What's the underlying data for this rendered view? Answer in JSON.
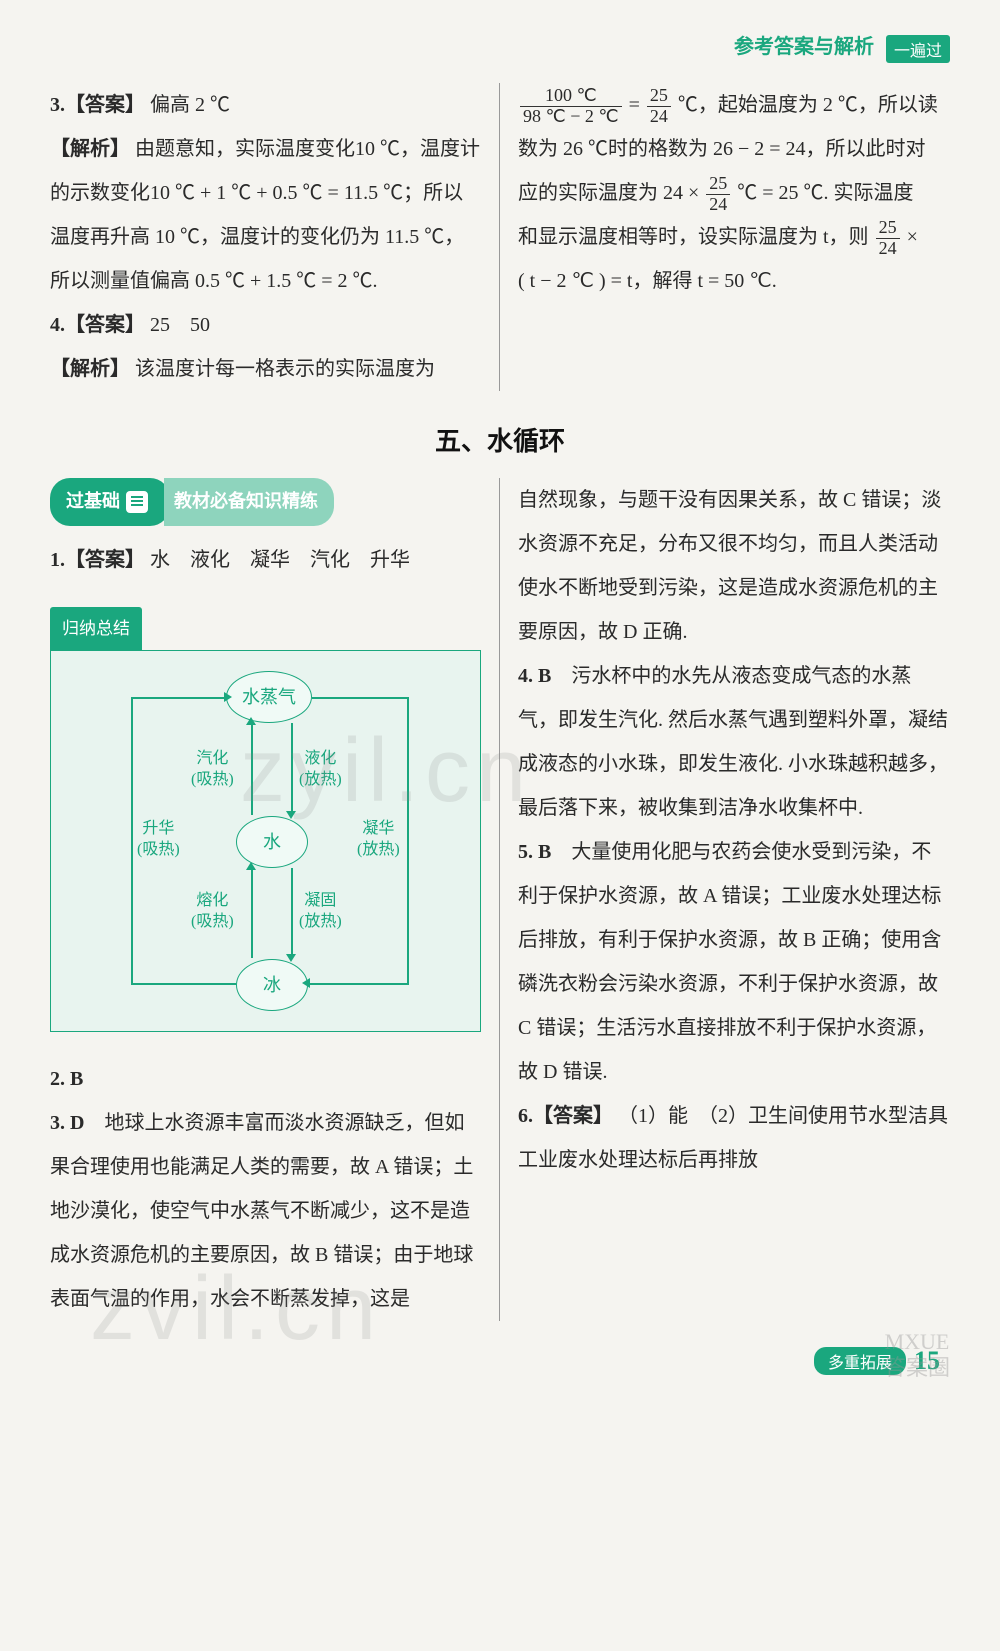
{
  "header": {
    "title": "参考答案与解析",
    "badge": "一遍过"
  },
  "section1": {
    "left": {
      "q3_label": "3.【答案】",
      "q3_ans": "偏高 2 ℃",
      "q3_ex_label": "【解析】",
      "q3_ex": "由题意知，实际温度变化10 ℃，温度计的示数变化10 ℃ + 1 ℃ + 0.5 ℃ = 11.5 ℃；所以温度再升高 10 ℃，温度计的变化仍为 11.5 ℃，所以测量值偏高 0.5 ℃ + 1.5 ℃ = 2 ℃.",
      "q4_label": "4.【答案】",
      "q4_ans": "25　50",
      "q4_ex_label": "【解析】",
      "q4_ex_pre": "该温度计每一格表示的实际温度为"
    },
    "right": {
      "frac_num": "100 ℃",
      "frac_den": "98 ℃ − 2 ℃",
      "eq1": " = ",
      "frac2_num": "25",
      "frac2_den": "24",
      "tail1": " ℃，起始温度为 2 ℃，所以读",
      "line2": "数为 26 ℃时的格数为 26 − 2 = 24，所以此时对",
      "line3_pre": "应的实际温度为 24 × ",
      "line3_post": " ℃ = 25 ℃. 实际温度",
      "line4_pre": "和显示温度相等时，设实际温度为 t，则",
      "line4_post": " × ",
      "line5": "( t − 2 ℃ ) = t，解得 t = 50 ℃."
    }
  },
  "section_title": "五、水循环",
  "basics": {
    "pill": "过基础",
    "subtitle": "教材必备知识精练"
  },
  "section2": {
    "left": {
      "q1_label": "1.【答案】",
      "q1_ans": "水　液化　凝华　汽化　升华",
      "summary_label": "归纳总结",
      "q2": "2. B",
      "q3_pre": "3. D",
      "q3_body": "　地球上水资源丰富而淡水资源缺乏，但如果合理使用也能满足人类的需要，故 A 错误；土地沙漠化，使空气中水蒸气不断减少，这不是造成水资源危机的主要原因，故 B 错误；由于地球表面气温的作用，水会不断蒸发掉，这是"
    },
    "right": {
      "p1": "自然现象，与题干没有因果关系，故 C 错误；淡水资源不充足，分布又很不均匀，而且人类活动使水不断地受到污染，这是造成水资源危机的主要原因，故 D 正确.",
      "q4_pre": "4. B",
      "q4_body": "　污水杯中的水先从液态变成气态的水蒸气，即发生汽化. 然后水蒸气遇到塑料外罩，凝结成液态的小水珠，即发生液化. 小水珠越积越多，最后落下来，被收集到洁净水收集杯中.",
      "q5_pre": "5. B",
      "q5_body": "　大量使用化肥与农药会使水受到污染，不利于保护水资源，故 A 错误；工业废水处理达标后排放，有利于保护水资源，故 B 正确；使用含磷洗衣粉会污染水资源，不利于保护水资源，故 C 错误；生活污水直接排放不利于保护水资源，故 D 错误.",
      "q6_label": "6.【答案】",
      "q6_ans": "（1）能　（2）卫生间使用节水型洁具　工业废水处理达标后再排放"
    }
  },
  "diagram": {
    "node_top": "水蒸气",
    "node_mid": "水",
    "node_bot": "冰",
    "e_vaporize": "汽化\n(吸热)",
    "e_liquefy": "液化\n(放热)",
    "e_sublime": "升华\n(吸热)",
    "e_deposit": "凝华\n(放热)",
    "e_melt": "熔化\n(吸热)",
    "e_freeze": "凝固\n(放热)"
  },
  "footer": {
    "tag": "多重拓展",
    "page": "15"
  },
  "watermark": "zyil.cn",
  "watermark2": "zvil.cn",
  "stamp1": "MXUE",
  "stamp2": "答案圈"
}
